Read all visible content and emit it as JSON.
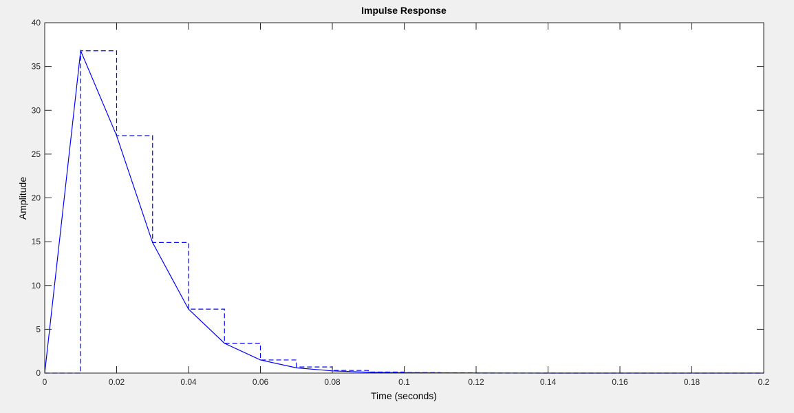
{
  "chart_data": {
    "type": "line",
    "title": "Impulse Response",
    "xlabel": "Time (seconds)",
    "ylabel": "Amplitude",
    "xlim": [
      0,
      0.2
    ],
    "ylim": [
      0,
      40
    ],
    "grid": false,
    "x_ticks": [
      {
        "value": 0,
        "label": "0"
      },
      {
        "value": 0.02,
        "label": "0.02"
      },
      {
        "value": 0.04,
        "label": "0.04"
      },
      {
        "value": 0.06,
        "label": "0.06"
      },
      {
        "value": 0.08,
        "label": "0.08"
      },
      {
        "value": 0.1,
        "label": "0.1"
      },
      {
        "value": 0.12,
        "label": "0.12"
      },
      {
        "value": 0.14,
        "label": "0.14"
      },
      {
        "value": 0.16,
        "label": "0.16"
      },
      {
        "value": 0.18,
        "label": "0.18"
      },
      {
        "value": 0.2,
        "label": "0.2"
      }
    ],
    "y_ticks": [
      {
        "value": 0,
        "label": "0"
      },
      {
        "value": 5,
        "label": "5"
      },
      {
        "value": 10,
        "label": "10"
      },
      {
        "value": 15,
        "label": "15"
      },
      {
        "value": 20,
        "label": "20"
      },
      {
        "value": 25,
        "label": "25"
      },
      {
        "value": 30,
        "label": "30"
      },
      {
        "value": 35,
        "label": "35"
      },
      {
        "value": 40,
        "label": "40"
      }
    ],
    "series": [
      {
        "style": "solid",
        "color": "#0000ff",
        "x": [
          0,
          0.01,
          0.02,
          0.03,
          0.04,
          0.05,
          0.06,
          0.07,
          0.08,
          0.09,
          0.1,
          0.12,
          0.14,
          0.16,
          0.18,
          0.2
        ],
        "y": [
          0,
          36.8,
          27.1,
          14.9,
          7.3,
          3.4,
          1.5,
          0.6,
          0.25,
          0.1,
          0.04,
          0.01,
          0,
          0,
          0,
          0
        ]
      },
      {
        "style": "dashed-stair",
        "color": "#0000ff",
        "x": [
          0,
          0.01,
          0.02,
          0.03,
          0.04,
          0.05,
          0.06,
          0.07,
          0.08,
          0.09,
          0.1,
          0.11,
          0.12
        ],
        "y": [
          0,
          36.8,
          27.1,
          14.9,
          7.3,
          3.4,
          1.5,
          0.7,
          0.3,
          0.12,
          0.05,
          0.02,
          0
        ]
      }
    ]
  }
}
